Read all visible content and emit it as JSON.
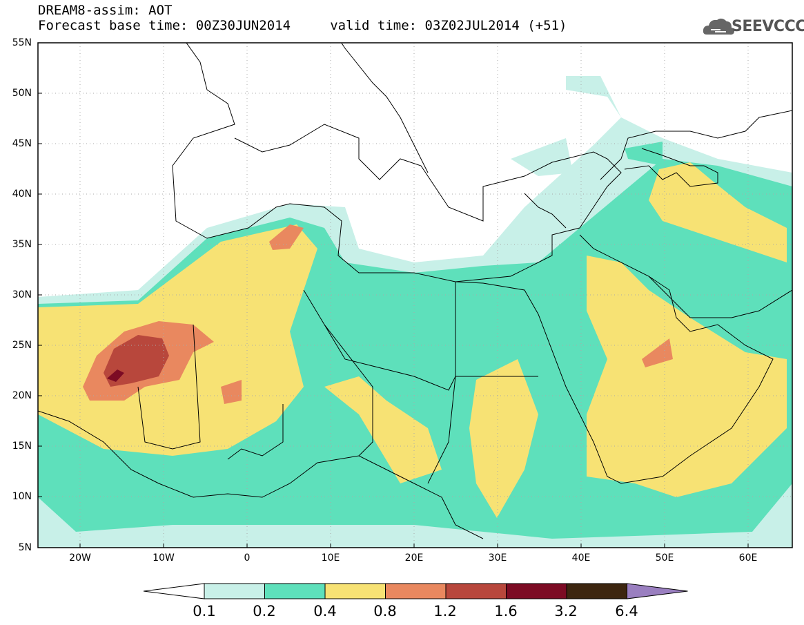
{
  "header": {
    "title_line1": "DREAM8-assim: AOT",
    "title_line2": "Forecast base time: 00Z30JUN2014     valid time: 03Z02JUL2014 (+51)"
  },
  "logo": {
    "text": "SEEVCCC",
    "icon": "cloud-icon"
  },
  "map": {
    "lat_ticks": [
      "55N",
      "50N",
      "45N",
      "40N",
      "35N",
      "30N",
      "25N",
      "20N",
      "15N",
      "10N",
      "5N"
    ],
    "lon_ticks": [
      "20W",
      "10W",
      "0",
      "10E",
      "20E",
      "30E",
      "40E",
      "50E",
      "60E"
    ]
  },
  "colorbar": {
    "labels": [
      "0.1",
      "0.2",
      "0.4",
      "0.8",
      "1.2",
      "1.6",
      "3.2",
      "6.4"
    ],
    "colors": [
      "#ffffff",
      "#c8f0e8",
      "#5ee0bb",
      "#f7e274",
      "#e9885f",
      "#b8473c",
      "#7c0b24",
      "#3d2610",
      "#9a7fc0"
    ]
  }
}
